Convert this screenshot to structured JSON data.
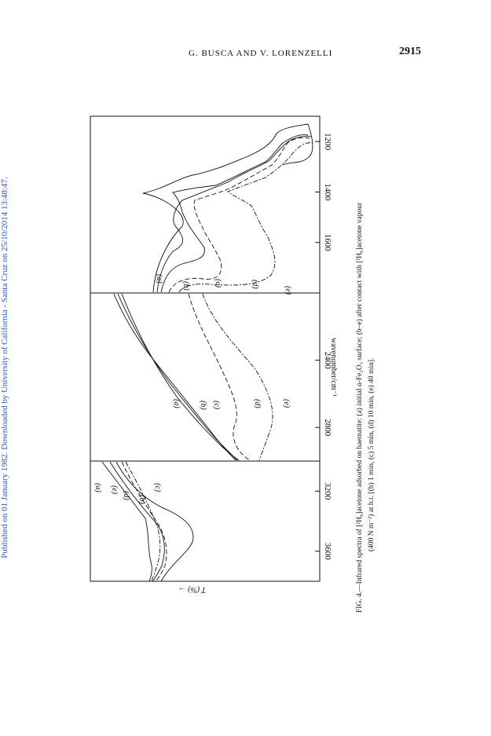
{
  "sidebar_text": "Published on 01 January 1982. Downloaded by University of California - Santa Cruz on 25/10/2014 13:48:47.",
  "running_head": "G. BUSCA AND V. LORENZELLI",
  "page_number": "2915",
  "figure": {
    "y_axis_label": "T (%) →",
    "x_axis_label": "wavenumber/cm⁻¹",
    "curve_labels": [
      "(a)",
      "(b)",
      "(c)",
      "(d)",
      "(e)"
    ],
    "caption_line1": "FIG. 4.—Infrared spectra of [²H₆]acetone adsorbed on haematite: (a) initial α-Fe₂O₃ surface; (b–e) after contact with [²H₆]acetone vapour",
    "caption_line2": "(400 N m⁻²) at b.t. [(b) 1 min, (c) 5 min, (d) 10 min, (e) 40 min]."
  },
  "chart_data": {
    "type": "line",
    "xlabel": "wavenumber/cm⁻¹",
    "ylabel": "T (%) →",
    "grid": false,
    "panels": [
      {
        "xlim": [
          3800,
          3000
        ],
        "ticks": [
          3600,
          3200
        ]
      },
      {
        "xlim": [
          3000,
          2000
        ],
        "ticks": [
          2800,
          2400
        ]
      },
      {
        "xlim": [
          1800,
          1100
        ],
        "ticks": [
          1600,
          1400,
          1200
        ]
      }
    ],
    "series": [
      {
        "name": "(a)"
      },
      {
        "name": "(b)"
      },
      {
        "name": "(c)"
      },
      {
        "name": "(d)"
      },
      {
        "name": "(e)"
      }
    ]
  }
}
